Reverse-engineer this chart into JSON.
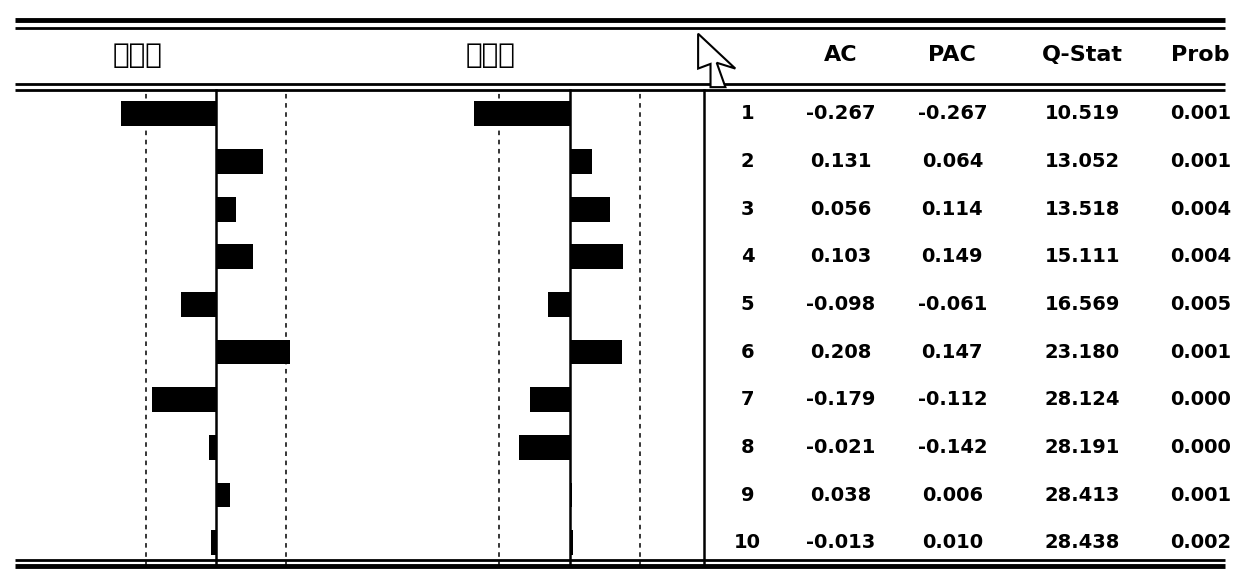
{
  "title_left": "自相关",
  "title_mid": "偏相关",
  "col_headers": [
    "AC",
    "PAC",
    "Q-Stat",
    "Prob"
  ],
  "rows": [
    {
      "lag": 1,
      "ac": -0.267,
      "pac": -0.267,
      "qstat": "10.519",
      "prob": "0.001"
    },
    {
      "lag": 2,
      "ac": 0.131,
      "pac": 0.064,
      "qstat": "13.052",
      "prob": "0.001"
    },
    {
      "lag": 3,
      "ac": 0.056,
      "pac": 0.114,
      "qstat": "13.518",
      "prob": "0.004"
    },
    {
      "lag": 4,
      "ac": 0.103,
      "pac": 0.149,
      "qstat": "15.111",
      "prob": "0.004"
    },
    {
      "lag": 5,
      "ac": -0.098,
      "pac": -0.061,
      "qstat": "16.569",
      "prob": "0.005"
    },
    {
      "lag": 6,
      "ac": 0.208,
      "pac": 0.147,
      "qstat": "23.180",
      "prob": "0.001"
    },
    {
      "lag": 7,
      "ac": -0.179,
      "pac": -0.112,
      "qstat": "28.124",
      "prob": "0.000"
    },
    {
      "lag": 8,
      "ac": -0.021,
      "pac": -0.142,
      "qstat": "28.191",
      "prob": "0.000"
    },
    {
      "lag": 9,
      "ac": 0.038,
      "pac": 0.006,
      "qstat": "28.413",
      "prob": "0.001"
    },
    {
      "lag": 10,
      "ac": -0.013,
      "pac": 0.01,
      "qstat": "28.438",
      "prob": "0.002"
    }
  ],
  "bar_color": "#000000",
  "bg_color": "#ffffff",
  "line_color": "#000000",
  "confidence_band": 0.197,
  "scale_max": 0.35
}
